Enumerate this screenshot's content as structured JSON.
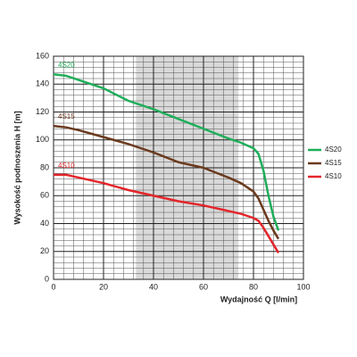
{
  "chart_data": {
    "type": "line",
    "xlabel": "Wydajność Q [l/min]",
    "ylabel": "Wysokość podnoszenia H [m]",
    "x": [
      0,
      5,
      10,
      20,
      30,
      35,
      40,
      50,
      60,
      70,
      75,
      80,
      82,
      84,
      86,
      88,
      90
    ],
    "series": [
      {
        "name": "4S20",
        "color": "#1fae5a",
        "values": [
          147,
          146,
          143,
          137,
          128,
          125,
          122,
          115,
          108,
          101,
          98,
          94,
          90,
          78,
          60,
          45,
          35
        ]
      },
      {
        "name": "4S15",
        "color": "#6b3a1e",
        "values": [
          110,
          109,
          107,
          102,
          97,
          94,
          91,
          84,
          80,
          73,
          69,
          63,
          58,
          50,
          42,
          35,
          29
        ]
      },
      {
        "name": "4S10",
        "color": "#e3262b",
        "values": [
          75,
          75,
          73,
          69,
          64,
          62,
          60,
          56,
          53,
          49,
          47,
          44,
          42,
          37,
          31,
          25,
          19
        ]
      }
    ],
    "xlim": [
      0,
      100
    ],
    "xticks": [
      0,
      20,
      40,
      60,
      80,
      100
    ],
    "ylim": [
      0,
      160
    ],
    "yticks": [
      0,
      20,
      40,
      60,
      80,
      100,
      120,
      140,
      160
    ],
    "shaded_range": [
      33,
      74
    ],
    "grid": true,
    "minor_grid": true,
    "legend": "right"
  }
}
